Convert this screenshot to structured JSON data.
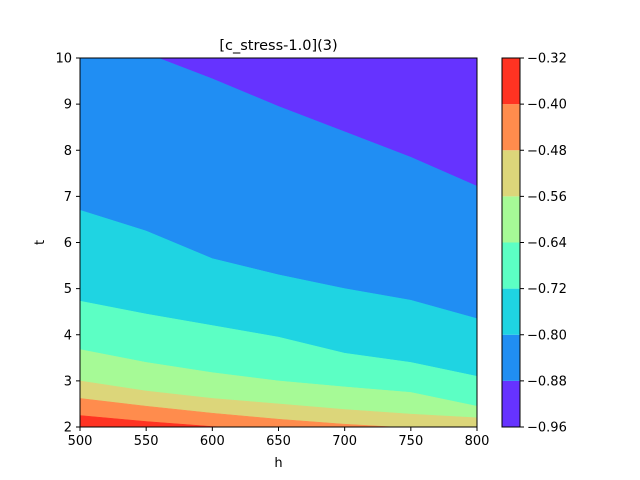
{
  "chart_data": {
    "type": "contourf",
    "title": "[c_stress-1.0](3)",
    "xlabel": "h",
    "ylabel": "t",
    "xlim": [
      500,
      800
    ],
    "ylim": [
      2,
      10
    ],
    "x_ticks": [
      "500",
      "550",
      "600",
      "650",
      "700",
      "750",
      "800"
    ],
    "y_ticks": [
      "2",
      "3",
      "4",
      "5",
      "6",
      "7",
      "8",
      "9",
      "10"
    ],
    "x_sample": [
      500,
      550,
      600,
      650,
      700,
      750,
      800
    ],
    "boundaries": [
      {
        "level": -0.4,
        "t": [
          2.25,
          2.12,
          2.01,
          1.95,
          1.9,
          1.85,
          1.8
        ]
      },
      {
        "level": -0.48,
        "t": [
          2.62,
          2.45,
          2.3,
          2.17,
          2.06,
          1.98,
          1.9
        ]
      },
      {
        "level": -0.56,
        "t": [
          3.0,
          2.78,
          2.62,
          2.5,
          2.38,
          2.28,
          2.2
        ]
      },
      {
        "level": -0.64,
        "t": [
          3.68,
          3.4,
          3.18,
          3.0,
          2.87,
          2.75,
          2.45
        ]
      },
      {
        "level": -0.72,
        "t": [
          4.73,
          4.45,
          4.2,
          3.95,
          3.6,
          3.4,
          3.1
        ]
      },
      {
        "level": -0.8,
        "t": [
          6.7,
          6.25,
          5.65,
          5.3,
          5.0,
          4.75,
          4.35
        ]
      },
      {
        "level": -0.88,
        "t": [
          10.3,
          10.1,
          9.55,
          8.95,
          8.4,
          7.85,
          7.22
        ]
      }
    ],
    "colorbar": {
      "levels": [
        -0.96,
        -0.88,
        -0.8,
        -0.72,
        -0.64,
        -0.56,
        -0.48,
        -0.4,
        -0.32
      ],
      "tick_labels": [
        "−0.96",
        "−0.88",
        "−0.80",
        "−0.72",
        "−0.64",
        "−0.56",
        "−0.48",
        "−0.40",
        "−0.32"
      ],
      "colors": [
        "#6633ff",
        "#208ef3",
        "#1fd4e2",
        "#5cffc4",
        "#a6fa96",
        "#dcd67a",
        "#ff8c4d",
        "#ff3322"
      ]
    }
  }
}
